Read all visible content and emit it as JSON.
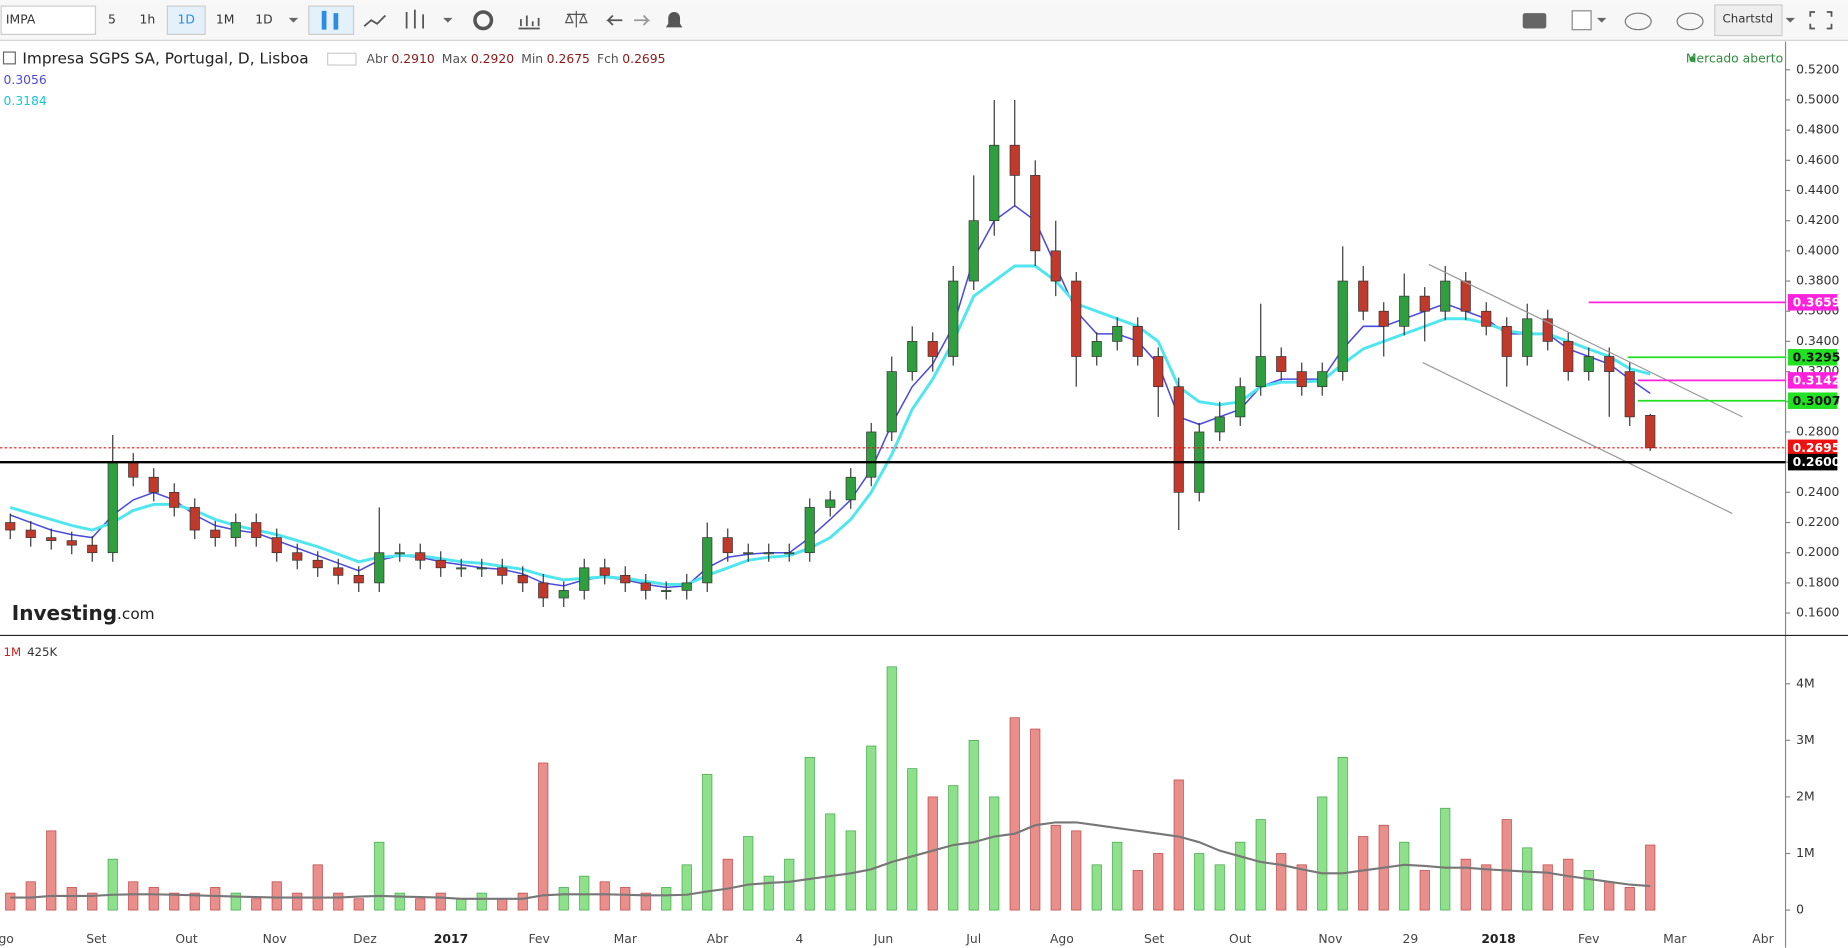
{
  "toolbar": {
    "symbol": "IMPA",
    "intervals": [
      "5",
      "1h",
      "1D",
      "1M",
      "1D"
    ],
    "account": "Chartstd"
  },
  "chart_data": [
    {
      "type": "candlestick",
      "title": "Impresa SGPS SA, Portugal, D, Lisboa",
      "ohlc_legend": [
        {
          "label": "Abr",
          "value": "0.2910"
        },
        {
          "label": "Max",
          "value": "0.2920"
        },
        {
          "label": "Min",
          "value": "0.2675"
        },
        {
          "label": "Fch",
          "value": "0.2695"
        }
      ],
      "status": "Mercado aberto",
      "logo": [
        "Investing",
        ".com"
      ],
      "up_color": "#2e9e3e",
      "down_color": "#c0392b",
      "open": [
        0.22,
        0.215,
        0.21,
        0.208,
        0.205,
        0.2,
        0.26,
        0.25,
        0.24,
        0.23,
        0.215,
        0.21,
        0.22,
        0.21,
        0.2,
        0.195,
        0.19,
        0.185,
        0.18,
        0.2,
        0.2,
        0.195,
        0.19,
        0.19,
        0.19,
        0.185,
        0.18,
        0.17,
        0.175,
        0.19,
        0.185,
        0.18,
        0.175,
        0.175,
        0.18,
        0.21,
        0.2,
        0.2,
        0.2,
        0.2,
        0.23,
        0.235,
        0.25,
        0.28,
        0.32,
        0.34,
        0.33,
        0.38,
        0.42,
        0.47,
        0.45,
        0.4,
        0.38,
        0.33,
        0.34,
        0.35,
        0.33,
        0.31,
        0.24,
        0.28,
        0.29,
        0.31,
        0.33,
        0.32,
        0.31,
        0.32,
        0.38,
        0.36,
        0.35,
        0.37,
        0.36,
        0.38,
        0.36,
        0.35,
        0.33,
        0.355,
        0.34,
        0.32,
        0.33,
        0.32,
        0.291
      ],
      "high": [
        0.226,
        0.221,
        0.216,
        0.214,
        0.211,
        0.278,
        0.266,
        0.256,
        0.246,
        0.236,
        0.221,
        0.226,
        0.226,
        0.216,
        0.206,
        0.201,
        0.196,
        0.191,
        0.23,
        0.206,
        0.206,
        0.201,
        0.196,
        0.196,
        0.196,
        0.191,
        0.186,
        0.181,
        0.196,
        0.196,
        0.191,
        0.186,
        0.181,
        0.186,
        0.22,
        0.216,
        0.206,
        0.206,
        0.206,
        0.236,
        0.241,
        0.256,
        0.286,
        0.33,
        0.35,
        0.346,
        0.39,
        0.45,
        0.5,
        0.5,
        0.46,
        0.42,
        0.386,
        0.346,
        0.356,
        0.356,
        0.336,
        0.316,
        0.286,
        0.3,
        0.316,
        0.365,
        0.336,
        0.326,
        0.326,
        0.403,
        0.39,
        0.366,
        0.385,
        0.376,
        0.39,
        0.386,
        0.366,
        0.356,
        0.365,
        0.361,
        0.346,
        0.336,
        0.336,
        0.326,
        0.292
      ],
      "low": [
        0.209,
        0.204,
        0.202,
        0.199,
        0.194,
        0.194,
        0.244,
        0.234,
        0.224,
        0.209,
        0.204,
        0.204,
        0.204,
        0.194,
        0.189,
        0.184,
        0.179,
        0.174,
        0.174,
        0.194,
        0.189,
        0.184,
        0.184,
        0.184,
        0.179,
        0.174,
        0.164,
        0.164,
        0.169,
        0.179,
        0.174,
        0.169,
        0.169,
        0.169,
        0.174,
        0.194,
        0.194,
        0.194,
        0.194,
        0.194,
        0.224,
        0.229,
        0.244,
        0.274,
        0.314,
        0.32,
        0.324,
        0.374,
        0.41,
        0.43,
        0.39,
        0.37,
        0.31,
        0.324,
        0.334,
        0.324,
        0.29,
        0.215,
        0.234,
        0.274,
        0.284,
        0.304,
        0.314,
        0.304,
        0.304,
        0.314,
        0.354,
        0.33,
        0.344,
        0.34,
        0.354,
        0.354,
        0.344,
        0.31,
        0.324,
        0.334,
        0.314,
        0.314,
        0.29,
        0.284,
        0.2675
      ],
      "close": [
        0.215,
        0.21,
        0.208,
        0.205,
        0.2,
        0.26,
        0.25,
        0.24,
        0.23,
        0.215,
        0.21,
        0.22,
        0.21,
        0.2,
        0.195,
        0.19,
        0.185,
        0.18,
        0.2,
        0.2,
        0.195,
        0.19,
        0.19,
        0.19,
        0.185,
        0.18,
        0.17,
        0.175,
        0.19,
        0.185,
        0.18,
        0.175,
        0.175,
        0.18,
        0.21,
        0.2,
        0.2,
        0.2,
        0.2,
        0.23,
        0.235,
        0.25,
        0.28,
        0.32,
        0.34,
        0.33,
        0.38,
        0.42,
        0.47,
        0.45,
        0.4,
        0.38,
        0.33,
        0.34,
        0.35,
        0.33,
        0.31,
        0.24,
        0.28,
        0.29,
        0.31,
        0.33,
        0.32,
        0.31,
        0.32,
        0.38,
        0.36,
        0.35,
        0.37,
        0.36,
        0.38,
        0.36,
        0.35,
        0.33,
        0.355,
        0.34,
        0.32,
        0.33,
        0.32,
        0.29,
        0.2695
      ],
      "series": [
        {
          "color": "#4b4bdc",
          "last_label": "0.3056",
          "values": [
            0.225,
            0.22,
            0.215,
            0.212,
            0.21,
            0.225,
            0.235,
            0.24,
            0.235,
            0.225,
            0.218,
            0.215,
            0.213,
            0.208,
            0.203,
            0.198,
            0.193,
            0.188,
            0.195,
            0.198,
            0.197,
            0.194,
            0.192,
            0.19,
            0.189,
            0.186,
            0.18,
            0.178,
            0.182,
            0.184,
            0.182,
            0.179,
            0.177,
            0.178,
            0.19,
            0.197,
            0.199,
            0.2,
            0.2,
            0.21,
            0.222,
            0.235,
            0.255,
            0.285,
            0.31,
            0.325,
            0.35,
            0.395,
            0.42,
            0.43,
            0.42,
            0.39,
            0.36,
            0.345,
            0.345,
            0.34,
            0.325,
            0.29,
            0.285,
            0.29,
            0.295,
            0.31,
            0.315,
            0.315,
            0.315,
            0.335,
            0.35,
            0.35,
            0.355,
            0.36,
            0.365,
            0.36,
            0.355,
            0.345,
            0.345,
            0.345,
            0.335,
            0.33,
            0.325,
            0.315,
            0.3056
          ]
        },
        {
          "color": "#4fe6f0",
          "last_label": "0.3184",
          "values": [
            0.23,
            0.226,
            0.222,
            0.218,
            0.215,
            0.22,
            0.228,
            0.232,
            0.232,
            0.228,
            0.222,
            0.218,
            0.215,
            0.212,
            0.208,
            0.204,
            0.199,
            0.194,
            0.197,
            0.198,
            0.198,
            0.196,
            0.194,
            0.193,
            0.191,
            0.189,
            0.185,
            0.182,
            0.183,
            0.184,
            0.183,
            0.181,
            0.179,
            0.179,
            0.185,
            0.19,
            0.195,
            0.197,
            0.198,
            0.203,
            0.21,
            0.222,
            0.24,
            0.265,
            0.295,
            0.315,
            0.34,
            0.37,
            0.38,
            0.39,
            0.39,
            0.38,
            0.365,
            0.36,
            0.355,
            0.35,
            0.34,
            0.31,
            0.3,
            0.298,
            0.3,
            0.31,
            0.313,
            0.313,
            0.314,
            0.325,
            0.335,
            0.34,
            0.345,
            0.35,
            0.355,
            0.355,
            0.352,
            0.347,
            0.345,
            0.345,
            0.34,
            0.335,
            0.33,
            0.322,
            0.3184
          ]
        }
      ],
      "hlines": [
        {
          "value": 0.3659,
          "label": "0.3659",
          "color": "#ff22dd",
          "text_color": "#ffffff",
          "x_start": 77.0,
          "width": 1.5
        },
        {
          "value": 0.3295,
          "label": "0.3295",
          "color": "#22e022",
          "text_color": "#111111",
          "x_start": 78.9,
          "width": 1.5
        },
        {
          "value": 0.3142,
          "label": "0.3142",
          "color": "#ff22dd",
          "text_color": "#ffffff",
          "x_start": 79.4,
          "width": 1.5
        },
        {
          "value": 0.3007,
          "label": "0.3007",
          "color": "#22e022",
          "text_color": "#111111",
          "x_start": 79.4,
          "width": 1.5
        },
        {
          "value": 0.2695,
          "label": "0.2695",
          "color": "#ee1111",
          "text_color": "#ffffff",
          "dotted": true,
          "width": 1
        },
        {
          "value": 0.26,
          "label": "0.2600",
          "color": "#000000",
          "text_color": "#ffffff",
          "width": 2
        }
      ],
      "trendlines": [
        {
          "x": [
            69.2,
            84.5
          ],
          "y": [
            0.391,
            0.29
          ]
        },
        {
          "x": [
            68.9,
            84.0
          ],
          "y": [
            0.326,
            0.226
          ]
        }
      ],
      "xlim": [
        -0.5,
        86.6
      ],
      "ylim": [
        0.14594,
        0.53875
      ],
      "yticks": [
        {
          "value": 0.16,
          "label": "0.1600"
        },
        {
          "value": 0.18,
          "label": "0.1800"
        },
        {
          "value": 0.2,
          "label": "0.2000"
        },
        {
          "value": 0.22,
          "label": "0.2200"
        },
        {
          "value": 0.24,
          "label": "0.2400"
        },
        {
          "value": 0.26,
          "label": "0.2600"
        },
        {
          "value": 0.28,
          "label": "0.2800"
        },
        {
          "value": 0.3,
          "label": "0.3000"
        },
        {
          "value": 0.32,
          "label": "0.3200"
        },
        {
          "value": 0.34,
          "label": "0.3400"
        },
        {
          "value": 0.36,
          "label": "0.3600"
        },
        {
          "value": 0.38,
          "label": "0.3800"
        },
        {
          "value": 0.4,
          "label": "0.4000"
        },
        {
          "value": 0.42,
          "label": "0.4200"
        },
        {
          "value": 0.44,
          "label": "0.4400"
        },
        {
          "value": 0.46,
          "label": "0.4600"
        },
        {
          "value": 0.48,
          "label": "0.4800"
        },
        {
          "value": 0.5,
          "label": "0.5000"
        },
        {
          "value": 0.52,
          "label": "0.5200"
        }
      ]
    },
    {
      "type": "bar",
      "legend": [
        "1M",
        "425K"
      ],
      "up_color": "#8fe08a",
      "down_color": "#e88f8c",
      "up_stroke": "#3fa84a",
      "down_stroke": "#c04545",
      "values": [
        0.3,
        0.5,
        1.4,
        0.4,
        0.3,
        0.9,
        0.5,
        0.4,
        0.3,
        0.3,
        0.4,
        0.3,
        0.2,
        0.5,
        0.3,
        0.8,
        0.3,
        0.2,
        1.2,
        0.3,
        0.2,
        0.3,
        0.2,
        0.3,
        0.2,
        0.3,
        2.6,
        0.4,
        0.6,
        0.5,
        0.4,
        0.3,
        0.4,
        0.8,
        2.4,
        0.9,
        1.3,
        0.6,
        0.9,
        2.7,
        1.7,
        1.4,
        2.9,
        4.3,
        2.5,
        2.0,
        2.2,
        3.0,
        2.0,
        3.4,
        3.2,
        1.5,
        1.4,
        0.8,
        1.2,
        0.7,
        1.0,
        2.3,
        1.0,
        0.8,
        1.2,
        1.6,
        1.0,
        0.8,
        2.0,
        2.7,
        1.3,
        1.5,
        1.2,
        0.7,
        1.8,
        0.9,
        0.8,
        1.6,
        1.1,
        0.8,
        0.9,
        0.7,
        0.5,
        0.4,
        1.15
      ],
      "series": [
        {
          "color": "#777777",
          "values": [
            0.22,
            0.22,
            0.25,
            0.25,
            0.25,
            0.27,
            0.28,
            0.28,
            0.27,
            0.26,
            0.25,
            0.24,
            0.23,
            0.22,
            0.22,
            0.22,
            0.22,
            0.24,
            0.25,
            0.24,
            0.23,
            0.22,
            0.2,
            0.2,
            0.2,
            0.2,
            0.26,
            0.28,
            0.28,
            0.28,
            0.27,
            0.26,
            0.26,
            0.27,
            0.33,
            0.38,
            0.45,
            0.48,
            0.5,
            0.55,
            0.6,
            0.65,
            0.72,
            0.85,
            0.95,
            1.05,
            1.15,
            1.2,
            1.3,
            1.35,
            1.5,
            1.55,
            1.55,
            1.5,
            1.45,
            1.4,
            1.35,
            1.3,
            1.2,
            1.05,
            0.95,
            0.85,
            0.8,
            0.72,
            0.65,
            0.65,
            0.7,
            0.75,
            0.8,
            0.78,
            0.75,
            0.75,
            0.72,
            0.7,
            0.68,
            0.66,
            0.6,
            0.55,
            0.5,
            0.45,
            0.425
          ]
        }
      ],
      "xlim": [
        -0.5,
        86.6
      ],
      "ylim": [
        -0.375,
        4.833
      ],
      "yticks": [
        0,
        {
          "value": 1,
          "label": "1M"
        },
        {
          "value": 2,
          "label": "2M"
        },
        {
          "value": 3,
          "label": "3M"
        },
        {
          "value": 4,
          "label": "4M"
        }
      ],
      "xticks": [
        {
          "value": -0.2,
          "label": "go"
        },
        {
          "value": 4.2,
          "label": "Set"
        },
        {
          "value": 8.6,
          "label": "Out"
        },
        {
          "value": 12.9,
          "label": "Nov"
        },
        {
          "value": 17.3,
          "label": "Dez"
        },
        {
          "value": 21.5,
          "label": "2017",
          "bold": true
        },
        {
          "value": 25.8,
          "label": "Fev"
        },
        {
          "value": 30.0,
          "label": "Mar"
        },
        {
          "value": 34.5,
          "label": "Abr"
        },
        {
          "value": 38.5,
          "label": "4"
        },
        {
          "value": 42.6,
          "label": "Jun"
        },
        {
          "value": 47.0,
          "label": "Jul"
        },
        {
          "value": 51.3,
          "label": "Ago"
        },
        {
          "value": 55.8,
          "label": "Set"
        },
        {
          "value": 60.0,
          "label": "Out"
        },
        {
          "value": 64.4,
          "label": "Nov"
        },
        {
          "value": 68.3,
          "label": "29"
        },
        {
          "value": 72.6,
          "label": "2018",
          "bold": true
        },
        {
          "value": 77.0,
          "label": "Fev"
        },
        {
          "value": 81.2,
          "label": "Mar"
        },
        {
          "value": 85.5,
          "label": "Abr"
        }
      ]
    }
  ]
}
